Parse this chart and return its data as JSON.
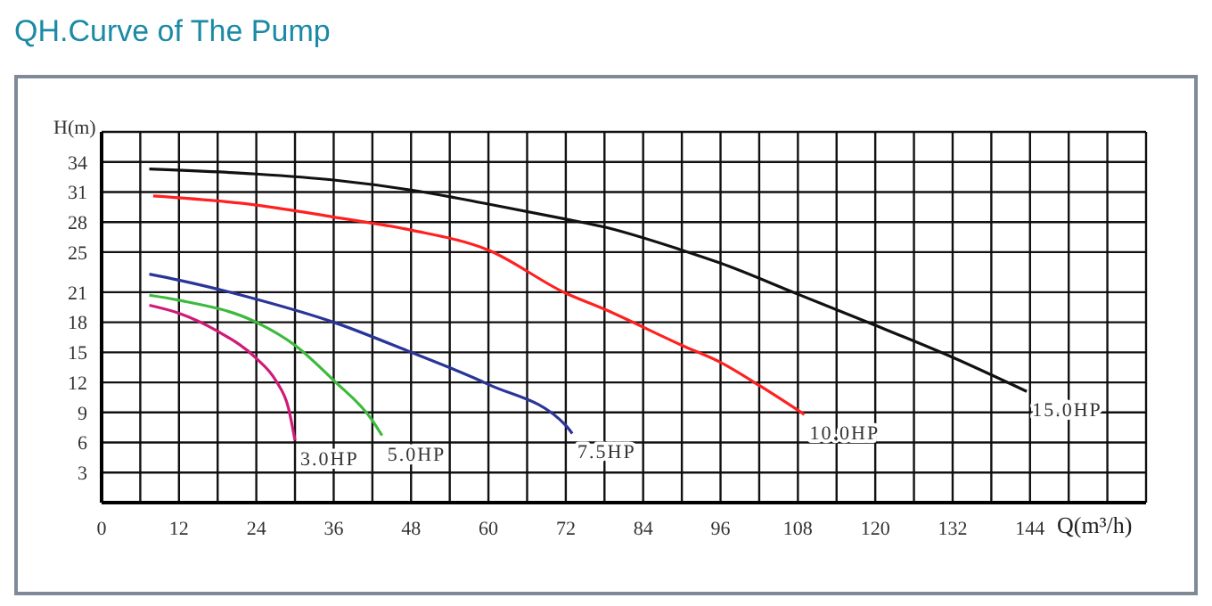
{
  "chart_data": {
    "type": "line",
    "title": "QH.Curve of The Pump",
    "xlabel": "Q(m³/h)",
    "ylabel": "H(m)",
    "xlim": [
      0,
      162
    ],
    "ylim": [
      0,
      37
    ],
    "xticks": [
      0,
      {
        "value": 6,
        "label": null
      },
      12,
      {
        "value": 18,
        "label": null
      },
      24,
      {
        "value": 30,
        "label": null
      },
      36,
      {
        "value": 42,
        "label": null
      },
      48,
      {
        "value": 54,
        "label": null
      },
      60,
      {
        "value": 66,
        "label": null
      },
      72,
      {
        "value": 78,
        "label": null
      },
      84,
      {
        "value": 90,
        "label": null
      },
      96,
      {
        "value": 102,
        "label": null
      },
      108,
      {
        "value": 114,
        "label": null
      },
      120,
      {
        "value": 126,
        "label": null
      },
      132,
      {
        "value": 138,
        "label": null
      },
      144,
      {
        "value": 150,
        "label": null
      },
      {
        "value": 156,
        "label": null
      },
      {
        "value": 162,
        "label": null
      }
    ],
    "yticks": [
      3,
      6,
      9,
      12,
      15,
      18,
      21,
      25,
      28,
      31,
      34,
      {
        "value": 37,
        "label": null
      }
    ],
    "grid": true,
    "marker": "none",
    "line_style": "solid",
    "series": [
      {
        "name": "3.0HP",
        "color": "#d01a78",
        "x": [
          7.4,
          12,
          18,
          24,
          27,
          29,
          30
        ],
        "values": [
          19.7,
          18.9,
          17.1,
          14.4,
          12.2,
          9.4,
          6.2
        ]
      },
      {
        "name": "5.0HP",
        "color": "#3cba3c",
        "x": [
          7.4,
          12,
          24,
          30,
          36,
          42,
          43.5
        ],
        "values": [
          20.7,
          20.2,
          18,
          15.7,
          12.2,
          8.2,
          6.7
        ]
      },
      {
        "name": "7.5HP",
        "color": "#2a3598",
        "x": [
          7.4,
          12,
          24,
          36,
          48,
          60,
          72,
          73
        ],
        "values": [
          22.8,
          22.2,
          20.3,
          18,
          15,
          11.8,
          7.7,
          6.9
        ]
      },
      {
        "name": "10.0HP",
        "color": "#ff2020",
        "x": [
          8,
          24,
          36,
          48,
          60,
          72,
          78,
          90,
          96,
          102,
          109
        ],
        "values": [
          30.6,
          29.7,
          28.5,
          27.2,
          25.2,
          20.9,
          19.3,
          15.7,
          14,
          11.7,
          8.8
        ]
      },
      {
        "name": "15.0HP",
        "color": "#111111",
        "x": [
          7.4,
          24,
          36,
          48,
          60,
          72,
          78,
          90,
          96,
          108,
          120,
          132,
          143.5
        ],
        "values": [
          33.3,
          32.8,
          32.2,
          31.2,
          29.8,
          28.3,
          27.5,
          25.2,
          23.9,
          20.8,
          17.7,
          14.5,
          11.1
        ]
      }
    ]
  }
}
